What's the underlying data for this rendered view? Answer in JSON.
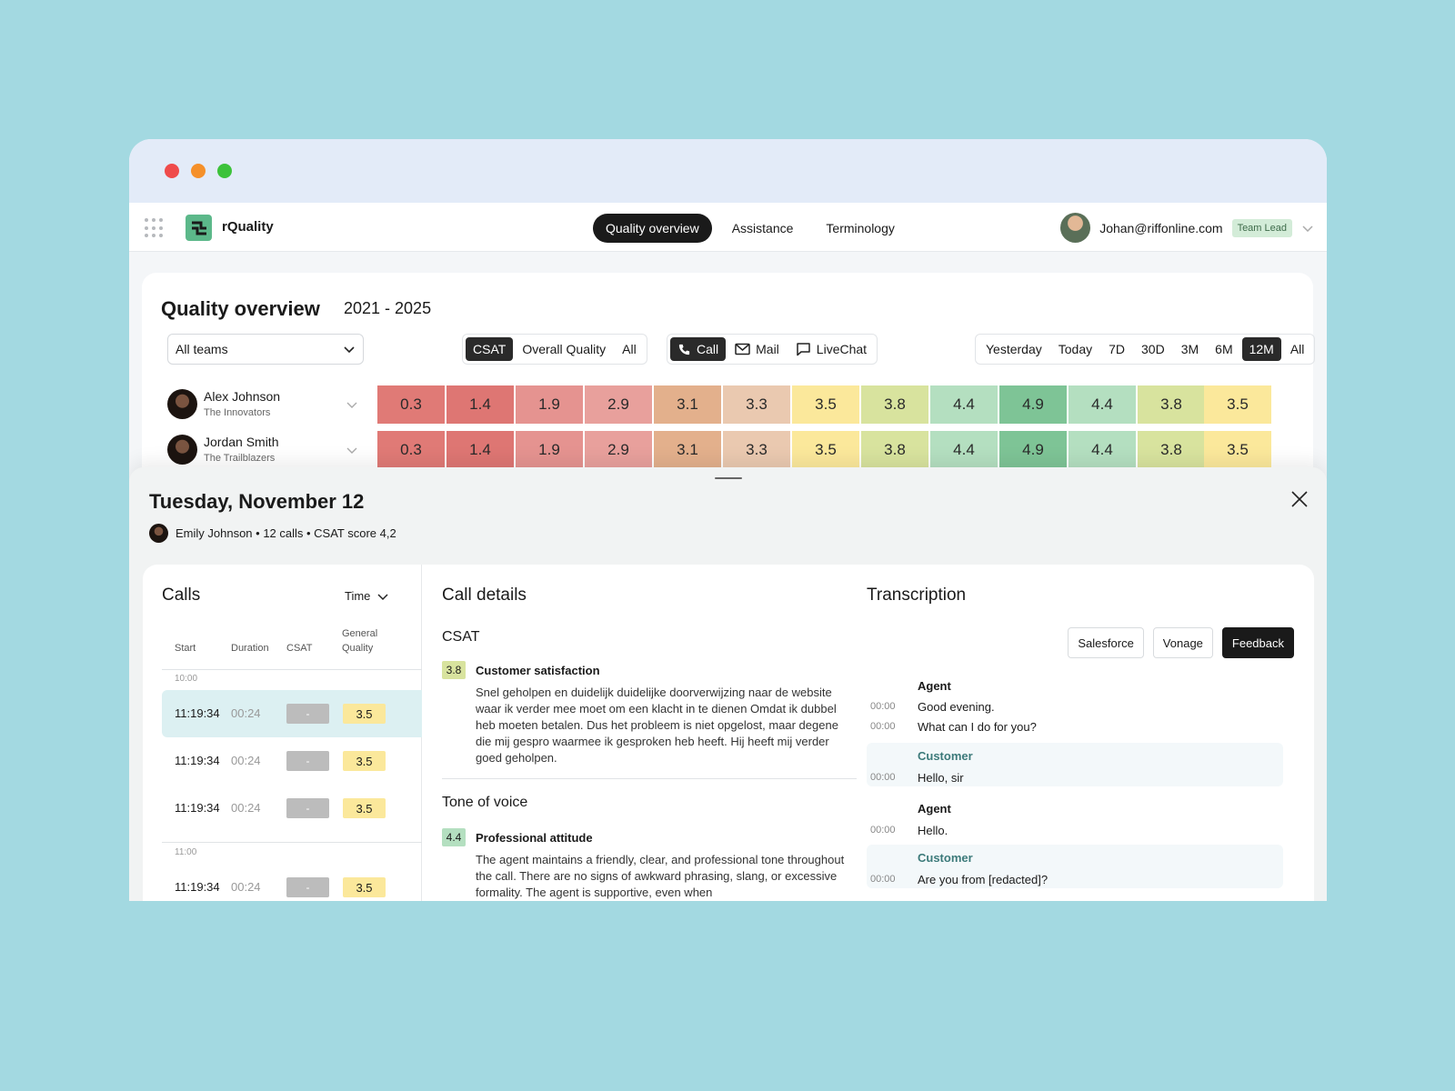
{
  "app": {
    "name": "rQuality"
  },
  "nav": {
    "tabs": [
      {
        "label": "Quality overview"
      },
      {
        "label": "Assistance"
      },
      {
        "label": "Terminology"
      }
    ]
  },
  "user": {
    "email": "Johan@riffonline.com",
    "role": "Team Lead"
  },
  "overview": {
    "title": "Quality overview",
    "range": "2021 - 2025",
    "team_select": "All teams",
    "metric_tabs": [
      "CSAT",
      "Overall Quality",
      "All"
    ],
    "channel_tabs": [
      "Call",
      "Mail",
      "LiveChat"
    ],
    "period_tabs": [
      "Yesterday",
      "Today",
      "7D",
      "30D",
      "3M",
      "6M",
      "12M",
      "All"
    ],
    "agents": [
      {
        "name": "Alex Johnson",
        "team": "The Innovators",
        "scores": [
          "0.3",
          "1.4",
          "1.9",
          "2.9",
          "3.1",
          "3.3",
          "3.5",
          "3.8",
          "4.4",
          "4.9",
          "4.4",
          "3.8"
        ],
        "total": "3.5"
      },
      {
        "name": "Jordan Smith",
        "team": "The Trailblazers",
        "scores": [
          "0.3",
          "1.4",
          "1.9",
          "2.9",
          "3.1",
          "3.3",
          "3.5",
          "3.8",
          "4.4",
          "4.9",
          "4.4",
          "3.8"
        ],
        "total": "3.5"
      }
    ],
    "cell_colors": [
      "#e07a76",
      "#de7673",
      "#e59390",
      "#e8a09c",
      "#e3b08c",
      "#eac9b0",
      "#fbe89b",
      "#d8e39e",
      "#b4dfc0",
      "#7ec496",
      "#b4dfc0",
      "#d8e39e"
    ],
    "total_color": "#fbe89b"
  },
  "panel": {
    "title": "Tuesday, November 12",
    "meta": "Emily Johnson • 12 calls • CSAT score 4,2"
  },
  "calls": {
    "title": "Calls",
    "sort": "Time",
    "headers": {
      "start": "Start",
      "duration": "Duration",
      "csat": "CSAT",
      "quality_1": "General",
      "quality_2": "Quality"
    },
    "groups": [
      "10:00",
      "11:00"
    ],
    "rows": [
      {
        "start": "11:19:34",
        "duration": "00:24",
        "csat": "-",
        "quality": "3.5"
      },
      {
        "start": "11:19:34",
        "duration": "00:24",
        "csat": "-",
        "quality": "3.5"
      },
      {
        "start": "11:19:34",
        "duration": "00:24",
        "csat": "-",
        "quality": "3.5"
      },
      {
        "start": "11:19:34",
        "duration": "00:24",
        "csat": "-",
        "quality": "3.5"
      }
    ]
  },
  "details": {
    "title": "Call details",
    "sections": [
      {
        "heading": "CSAT",
        "score": "3.8",
        "item": "Customer satisfaction",
        "text": "Snel geholpen en duidelijk duidelijke doorverwijzing naar de website waar ik verder mee moet om een klacht in te dienen Omdat ik dubbel heb moeten betalen. Dus het probleem is niet opgelost, maar degene die mij gespro waarmee ik gesproken heb heeft. Hij heeft mij verder goed geholpen."
      },
      {
        "heading": "Tone of voice",
        "score": "4.4",
        "item": "Professional attitude",
        "text": "The agent maintains a friendly, clear, and professional tone throughout the call. There are no signs of awkward phrasing, slang, or excessive formality. The agent is supportive, even when"
      }
    ]
  },
  "transcription": {
    "title": "Transcription",
    "buttons": [
      "Salesforce",
      "Vonage",
      "Feedback"
    ],
    "blocks": [
      {
        "speaker": "Agent",
        "lines": [
          {
            "time": "00:00",
            "text": "Good evening."
          },
          {
            "time": "00:00",
            "text": "What can I do for you?"
          }
        ]
      },
      {
        "speaker": "Customer",
        "lines": [
          {
            "time": "00:00",
            "text": "Hello, sir"
          }
        ]
      },
      {
        "speaker": "Agent",
        "lines": [
          {
            "time": "00:00",
            "text": "Hello."
          }
        ]
      },
      {
        "speaker": "Customer",
        "lines": [
          {
            "time": "00:00",
            "text": "Are you from [redacted]?"
          }
        ]
      }
    ]
  },
  "colors": {
    "csat_chip": "#d8e39e",
    "tone_chip": "#b4dfc0",
    "selected_row": "#dcf0f2"
  }
}
